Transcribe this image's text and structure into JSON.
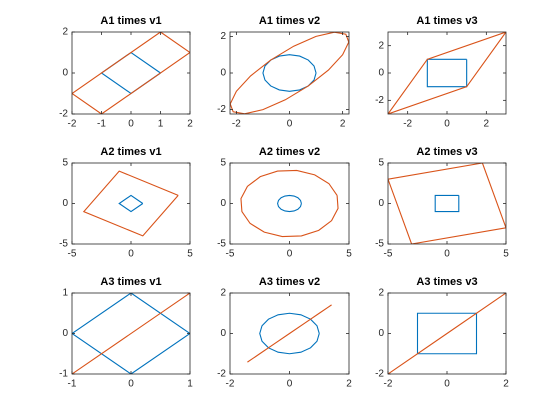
{
  "chart_data": [
    {
      "type": "line",
      "title": "A1 times v1",
      "xlim": [
        -2,
        2
      ],
      "ylim": [
        -2,
        2
      ],
      "xticks": [
        -2,
        -1,
        0,
        1,
        2
      ],
      "yticks": [
        -2,
        0,
        2
      ],
      "series": [
        {
          "color": "#0072bd",
          "x": [
            1,
            0,
            -1,
            0,
            1
          ],
          "values": [
            0,
            1,
            0,
            -1,
            0
          ]
        },
        {
          "color": "#d95319",
          "x": [
            1,
            2,
            -1,
            -2,
            1
          ],
          "values": [
            2,
            1,
            -2,
            -1,
            2
          ]
        }
      ]
    },
    {
      "type": "line",
      "title": "A1 times v2",
      "xlim": [
        -2.24,
        2.24
      ],
      "ylim": [
        -2.24,
        2.24
      ],
      "xticks": [
        -2,
        0,
        2
      ],
      "yticks": [
        -2,
        0,
        2
      ],
      "series": [
        {
          "color": "#0072bd",
          "x": [
            1,
            0.924,
            0.707,
            0.383,
            0,
            -0.383,
            -0.707,
            -0.924,
            -1,
            -0.924,
            -0.707,
            -0.383,
            0,
            0.383,
            0.707,
            0.924,
            1
          ],
          "values": [
            0,
            0.383,
            0.707,
            0.924,
            1,
            0.924,
            0.707,
            0.383,
            0,
            -0.383,
            -0.707,
            -0.924,
            -1,
            -0.924,
            -0.707,
            -0.383,
            0
          ]
        },
        {
          "color": "#d95319",
          "x": [
            1,
            1.69,
            2.121,
            2.231,
            2,
            1.465,
            0.707,
            -0.158,
            -1,
            -1.69,
            -2.121,
            -2.231,
            -2,
            -1.465,
            -0.707,
            0.158,
            1
          ],
          "values": [
            2,
            2.231,
            2.121,
            1.69,
            1,
            0.158,
            -0.707,
            -1.465,
            -2,
            -2.231,
            -2.121,
            -1.69,
            -1,
            -0.158,
            0.707,
            1.465,
            2
          ]
        }
      ]
    },
    {
      "type": "line",
      "title": "A1 times v3",
      "xlim": [
        -3,
        3
      ],
      "ylim": [
        -3,
        3
      ],
      "xticks": [
        -2,
        0,
        2
      ],
      "yticks": [
        -2,
        0,
        2
      ],
      "series": [
        {
          "color": "#0072bd",
          "x": [
            1,
            -1,
            -1,
            1,
            1
          ],
          "values": [
            1,
            1,
            -1,
            -1,
            1
          ]
        },
        {
          "color": "#d95319",
          "x": [
            3,
            1,
            -3,
            -1,
            3
          ],
          "values": [
            3,
            -1,
            -3,
            1,
            3
          ]
        }
      ]
    },
    {
      "type": "line",
      "title": "A2 times v1",
      "xlim": [
        -5,
        5
      ],
      "ylim": [
        -5,
        5
      ],
      "xticks": [
        -5,
        0,
        5
      ],
      "yticks": [
        -5,
        0,
        5
      ],
      "series": [
        {
          "color": "#0072bd",
          "x": [
            1,
            0,
            -1,
            0,
            1
          ],
          "values": [
            0,
            1,
            0,
            -1,
            0
          ]
        },
        {
          "color": "#d95319",
          "x": [
            4,
            -1,
            -4,
            1,
            4
          ],
          "values": [
            1,
            4,
            -1,
            -4,
            1
          ]
        }
      ]
    },
    {
      "type": "line",
      "title": "A2 times v2",
      "xlim": [
        -5,
        5
      ],
      "ylim": [
        -5,
        5
      ],
      "xticks": [
        -5,
        0,
        5
      ],
      "yticks": [
        -5,
        0,
        5
      ],
      "series": [
        {
          "color": "#0072bd",
          "x": [
            1,
            0.924,
            0.707,
            0.383,
            0,
            -0.383,
            -0.707,
            -0.924,
            -1,
            -0.924,
            -0.707,
            -0.383,
            0,
            0.383,
            0.707,
            0.924,
            1
          ],
          "values": [
            0,
            0.383,
            0.707,
            0.924,
            1,
            0.924,
            0.707,
            0.383,
            0,
            -0.383,
            -0.707,
            -0.924,
            -1,
            -0.924,
            -0.707,
            -0.383,
            0
          ]
        },
        {
          "color": "#d95319",
          "x": [
            4,
            3.313,
            2.121,
            0.608,
            -1,
            -2.456,
            -3.535,
            -4.079,
            -4,
            -3.313,
            -2.121,
            -0.608,
            1,
            2.456,
            3.535,
            4.079,
            4
          ],
          "values": [
            1,
            2.456,
            3.535,
            4.079,
            4,
            3.313,
            2.121,
            0.608,
            -1,
            -2.456,
            -3.535,
            -4.079,
            -4,
            -3.313,
            -2.121,
            -0.608,
            1
          ]
        }
      ]
    },
    {
      "type": "line",
      "title": "A2 times v3",
      "xlim": [
        -5,
        5
      ],
      "ylim": [
        -5,
        5
      ],
      "xticks": [
        -5,
        0,
        5
      ],
      "yticks": [
        -5,
        0,
        5
      ],
      "series": [
        {
          "color": "#0072bd",
          "x": [
            1,
            -1,
            -1,
            1,
            1
          ],
          "values": [
            1,
            1,
            -1,
            -1,
            1
          ]
        },
        {
          "color": "#d95319",
          "x": [
            3,
            -5,
            -3,
            5,
            3
          ],
          "values": [
            5,
            3,
            -5,
            -3,
            5
          ]
        }
      ]
    },
    {
      "type": "line",
      "title": "A3 times v1",
      "xlim": [
        -1,
        1
      ],
      "ylim": [
        -1,
        1
      ],
      "xticks": [
        -1,
        0,
        1
      ],
      "yticks": [
        -1,
        0,
        1
      ],
      "series": [
        {
          "color": "#0072bd",
          "x": [
            1,
            0,
            -1,
            0,
            1
          ],
          "values": [
            0,
            1,
            0,
            -1,
            0
          ]
        },
        {
          "color": "#d95319",
          "x": [
            1,
            1,
            -1,
            -1,
            1
          ],
          "values": [
            1,
            1,
            -1,
            -1,
            1
          ]
        }
      ]
    },
    {
      "type": "line",
      "title": "A3 times v2",
      "xlim": [
        -2,
        2
      ],
      "ylim": [
        -2,
        2
      ],
      "xticks": [
        -2,
        0,
        2
      ],
      "yticks": [
        -2,
        0,
        2
      ],
      "series": [
        {
          "color": "#0072bd",
          "x": [
            1,
            0.924,
            0.707,
            0.383,
            0,
            -0.383,
            -0.707,
            -0.924,
            -1,
            -0.924,
            -0.707,
            -0.383,
            0,
            0.383,
            0.707,
            0.924,
            1
          ],
          "values": [
            0,
            0.383,
            0.707,
            0.924,
            1,
            0.924,
            0.707,
            0.383,
            0,
            -0.383,
            -0.707,
            -0.924,
            -1,
            -0.924,
            -0.707,
            -0.383,
            0
          ]
        },
        {
          "color": "#d95319",
          "x": [
            1,
            1.307,
            1.414,
            1.307,
            1,
            0.541,
            0,
            -0.541,
            -1,
            -1.307,
            -1.414,
            -1.307,
            -1,
            -0.541,
            0,
            0.541,
            1
          ],
          "values": [
            1,
            1.307,
            1.414,
            1.307,
            1,
            0.541,
            0,
            -0.541,
            -1,
            -1.307,
            -1.414,
            -1.307,
            -1,
            -0.541,
            0,
            0.541,
            1
          ]
        }
      ]
    },
    {
      "type": "line",
      "title": "A3 times v3",
      "xlim": [
        -2,
        2
      ],
      "ylim": [
        -2,
        2
      ],
      "xticks": [
        -2,
        0,
        2
      ],
      "yticks": [
        -2,
        0,
        2
      ],
      "series": [
        {
          "color": "#0072bd",
          "x": [
            1,
            -1,
            -1,
            1,
            1
          ],
          "values": [
            1,
            1,
            -1,
            -1,
            1
          ]
        },
        {
          "color": "#d95319",
          "x": [
            2,
            0,
            -2,
            0,
            2
          ],
          "values": [
            2,
            0,
            -2,
            0,
            2
          ]
        }
      ]
    }
  ]
}
